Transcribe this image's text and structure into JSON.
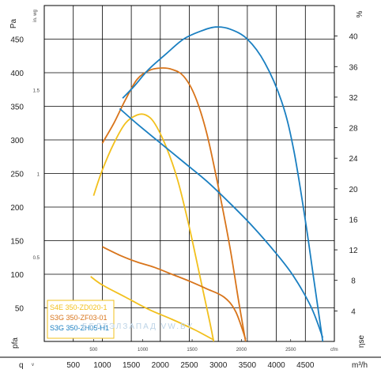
{
  "chart_data": {
    "type": "line",
    "y_left": {
      "label": "Pa",
      "ticks": [
        50,
        100,
        150,
        200,
        250,
        300,
        350,
        400,
        450
      ],
      "range": [
        0,
        500
      ]
    },
    "y_left_inwg": {
      "label": "in. wg",
      "ticks": [
        {
          "label": "0.5",
          "pa": 124.5
        },
        {
          "label": "1",
          "pa": 249
        },
        {
          "label": "1.5",
          "pa": 373.5
        }
      ]
    },
    "y_right": {
      "label": "%",
      "ticks": [
        4,
        8,
        12,
        16,
        20,
        24,
        28,
        32,
        36,
        40
      ],
      "range": [
        0,
        44
      ]
    },
    "x": {
      "label": "m³/h",
      "ticks": [
        500,
        1000,
        1500,
        2000,
        2500,
        3000,
        3500,
        4000,
        4500
      ],
      "range": [
        0,
        5000
      ]
    },
    "x_cfm": {
      "label": "cfm",
      "ticks": [
        500,
        1000,
        1500,
        2000,
        2500
      ],
      "m3h_per_cfm": 1.699
    },
    "bottom_left_labels": {
      "q": "q",
      "v": "v"
    },
    "bottom_labels": {
      "psf": "pfa",
      "eta": "ηse"
    },
    "legend": [
      {
        "name": "S4E 350-ZD020-1",
        "color": "#f2c01d"
      },
      {
        "name": "S3G 350-ZF03-01",
        "color": "#d8741a"
      },
      {
        "name": "S3G 350-ZH05-H1",
        "color": "#1a7fc1"
      }
    ],
    "watermark": "БЕЛТЭЛЗАПАД     VW.BY",
    "series": [
      {
        "color": "#f2c01d",
        "pressure": [
          [
            850,
            217
          ],
          [
            1000,
            255
          ],
          [
            1200,
            295
          ],
          [
            1400,
            325
          ],
          [
            1600,
            337
          ],
          [
            1750,
            337
          ],
          [
            1900,
            325
          ],
          [
            2100,
            290
          ],
          [
            2300,
            240
          ],
          [
            2500,
            170
          ],
          [
            2700,
            90
          ],
          [
            2850,
            30
          ],
          [
            2920,
            0
          ]
        ],
        "efficiency": [
          [
            800,
            8.5
          ],
          [
            1000,
            7.4
          ],
          [
            1400,
            5.8
          ],
          [
            1800,
            4.2
          ],
          [
            2200,
            2.9
          ],
          [
            2600,
            1.5
          ],
          [
            2920,
            0.2
          ]
        ]
      },
      {
        "color": "#d8741a",
        "pressure": [
          [
            1000,
            295
          ],
          [
            1200,
            325
          ],
          [
            1400,
            360
          ],
          [
            1600,
            390
          ],
          [
            1800,
            403
          ],
          [
            2000,
            407
          ],
          [
            2200,
            405
          ],
          [
            2400,
            395
          ],
          [
            2600,
            365
          ],
          [
            2800,
            310
          ],
          [
            3000,
            230
          ],
          [
            3200,
            140
          ],
          [
            3350,
            60
          ],
          [
            3470,
            0
          ]
        ],
        "efficiency": [
          [
            1000,
            12.4
          ],
          [
            1300,
            11.3
          ],
          [
            1600,
            10.4
          ],
          [
            1900,
            9.7
          ],
          [
            2200,
            8.8
          ],
          [
            2500,
            7.9
          ],
          [
            2800,
            6.9
          ],
          [
            3100,
            5.8
          ],
          [
            3300,
            3.9
          ],
          [
            3470,
            0.3
          ]
        ]
      },
      {
        "color": "#1a7fc1",
        "pressure": [
          [
            1350,
            362
          ],
          [
            1550,
            380
          ],
          [
            1800,
            405
          ],
          [
            2100,
            428
          ],
          [
            2400,
            450
          ],
          [
            2700,
            462
          ],
          [
            2950,
            468
          ],
          [
            3200,
            465
          ],
          [
            3500,
            450
          ],
          [
            3800,
            415
          ],
          [
            4100,
            355
          ],
          [
            4300,
            285
          ],
          [
            4500,
            180
          ],
          [
            4650,
            90
          ],
          [
            4800,
            0
          ]
        ],
        "efficiency": [
          [
            1300,
            30.5
          ],
          [
            1600,
            28.5
          ],
          [
            2000,
            26
          ],
          [
            2400,
            23.5
          ],
          [
            2800,
            21
          ],
          [
            3200,
            18.1
          ],
          [
            3600,
            15
          ],
          [
            4000,
            11.5
          ],
          [
            4300,
            8.5
          ],
          [
            4600,
            4.5
          ],
          [
            4800,
            0.5
          ]
        ]
      }
    ]
  }
}
